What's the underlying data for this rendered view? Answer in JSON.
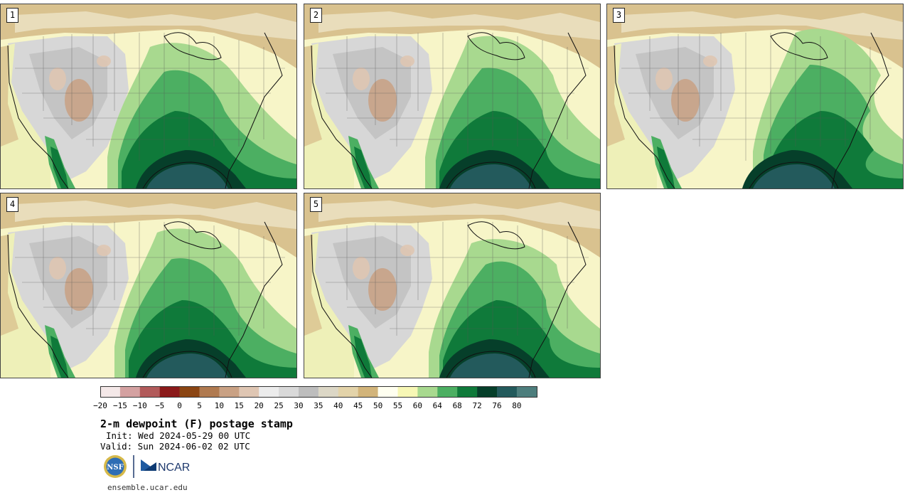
{
  "panels": [
    {
      "label": "1"
    },
    {
      "label": "2"
    },
    {
      "label": "3"
    },
    {
      "label": "4"
    },
    {
      "label": "5"
    }
  ],
  "colorbar": {
    "colors": [
      "#f4e8e8",
      "#d4a1a1",
      "#b25b5b",
      "#8b1a1a",
      "#8b4513",
      "#b07a50",
      "#c9a184",
      "#dfc6b3",
      "#ececec",
      "#d9d9d9",
      "#bdbdbd",
      "#dcd7c6",
      "#e3d3a9",
      "#d2b47a",
      "#fffff0",
      "#f7f7b5",
      "#a8d98f",
      "#4caf62",
      "#0f7a3a",
      "#063f2a",
      "#235a5c",
      "#4d7e7d"
    ],
    "ticks": [
      "−20",
      "−15",
      "−10",
      "−5",
      "0",
      "5",
      "10",
      "15",
      "20",
      "25",
      "30",
      "35",
      "40",
      "45",
      "50",
      "55",
      "60",
      "64",
      "68",
      "72",
      "76",
      "80"
    ]
  },
  "title": "2-m dewpoint (F) postage stamp",
  "init": "Init: Wed 2024-05-29 00 UTC",
  "valid": "Valid: Sun 2024-06-02 02 UTC",
  "logos": {
    "nsf": "NSF",
    "ncar": "NCAR"
  },
  "url": "ensemble.ucar.edu"
}
